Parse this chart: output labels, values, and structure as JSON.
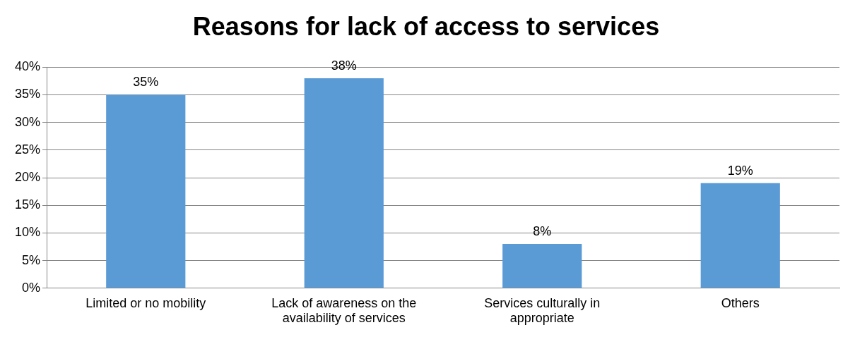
{
  "chart_data": {
    "type": "bar",
    "title": "Reasons for lack of access to services",
    "categories": [
      "Limited or no mobility",
      "Lack of awareness on the availability of services",
      "Services culturally in appropriate",
      "Others"
    ],
    "values": [
      35,
      38,
      8,
      19
    ],
    "value_labels": [
      "35%",
      "38%",
      "8%",
      "19%"
    ],
    "color": "#5b9bd5",
    "ylim": [
      0,
      40
    ],
    "yticks": [
      {
        "value": 0,
        "label": "0%"
      },
      {
        "value": 5,
        "label": "5%"
      },
      {
        "value": 10,
        "label": "10%"
      },
      {
        "value": 15,
        "label": "15%"
      },
      {
        "value": 20,
        "label": "20%"
      },
      {
        "value": 25,
        "label": "25%"
      },
      {
        "value": 30,
        "label": "30%"
      },
      {
        "value": 35,
        "label": "35%"
      },
      {
        "value": 40,
        "label": "40%"
      }
    ],
    "grid": "y",
    "legend": false
  }
}
